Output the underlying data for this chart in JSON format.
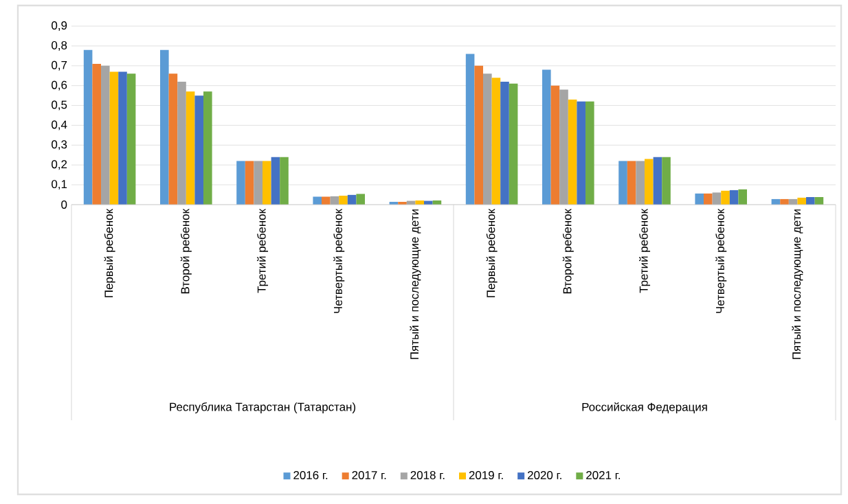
{
  "chart_data": {
    "type": "bar",
    "categories": [
      "Первый ребенок",
      "Второй ребенок",
      "Третий ребенок",
      "Четвертый ребенок",
      "Пятый и последующие дети",
      "Первый ребенок",
      "Второй ребенок",
      "Третий ребенок",
      "Четвертый ребенок",
      "Пятый и последующие дети"
    ],
    "series": [
      {
        "name": "2016 г.",
        "color": "#5b9bd5",
        "values": [
          0.78,
          0.78,
          0.22,
          0.04,
          0.014,
          0.76,
          0.68,
          0.22,
          0.056,
          0.028
        ]
      },
      {
        "name": "2017 г.",
        "color": "#ed7d31",
        "values": [
          0.71,
          0.66,
          0.22,
          0.04,
          0.014,
          0.7,
          0.6,
          0.22,
          0.056,
          0.028
        ]
      },
      {
        "name": "2018 г.",
        "color": "#a5a5a5",
        "values": [
          0.7,
          0.62,
          0.22,
          0.042,
          0.019,
          0.66,
          0.58,
          0.22,
          0.061,
          0.028
        ]
      },
      {
        "name": "2019 г.",
        "color": "#ffc000",
        "values": [
          0.67,
          0.57,
          0.22,
          0.045,
          0.021,
          0.64,
          0.53,
          0.23,
          0.07,
          0.035
        ]
      },
      {
        "name": "2020 г.",
        "color": "#4472c4",
        "values": [
          0.67,
          0.55,
          0.24,
          0.049,
          0.019,
          0.62,
          0.52,
          0.24,
          0.073,
          0.038
        ]
      },
      {
        "name": "2021 г.",
        "color": "#70ad47",
        "values": [
          0.66,
          0.57,
          0.24,
          0.054,
          0.021,
          0.61,
          0.52,
          0.24,
          0.077,
          0.038
        ]
      }
    ],
    "ylim": [
      0,
      0.9
    ],
    "yticks": [
      0,
      {
        "value": 0.1,
        "label": "0,1"
      },
      {
        "value": 0.2,
        "label": "0,2"
      },
      {
        "value": 0.3,
        "label": "0,3"
      },
      {
        "value": 0.4,
        "label": "0,4"
      },
      {
        "value": 0.5,
        "label": "0,5"
      },
      {
        "value": 0.6,
        "label": "0,6"
      },
      {
        "value": 0.7,
        "label": "0,7"
      },
      {
        "value": 0.8,
        "label": "0,8"
      },
      {
        "value": 0.9,
        "label": "0,9"
      }
    ],
    "grid": "y",
    "legend": "bottom",
    "annotations": [
      "Республика Татарстан (Татарстан)",
      "Российская Федерация"
    ]
  }
}
